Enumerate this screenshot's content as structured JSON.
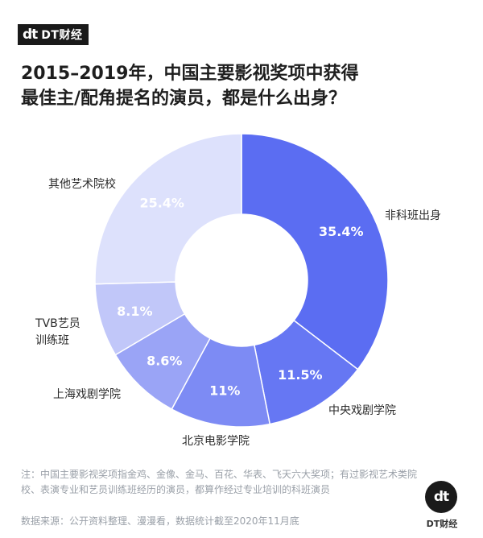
{
  "brand": {
    "logo": "dt",
    "name": "DT财经"
  },
  "title_line1": "2015–2019年，中国主要影视奖项中获得",
  "title_line2": "最佳主/配角提名的演员，都是什么出身？",
  "note": "注：中国主要影视奖项指金鸡、金像、金马、百花、华表、飞天六大奖项；有过影视艺术类院校、表演专业和艺员训练班经历的演员，都算作经过专业培训的科班演员",
  "source": "数据来源：公开资料整理、漫漫看，数据统计截至2020年11月底",
  "colors": {
    "非科班出身": "#5b6df2",
    "中央戏剧学院": "#6677f3",
    "北京电影学院": "#7d8bf4",
    "上海戏剧学院": "#9aa4f6",
    "TVB艺员训练班": "#c1c7f9",
    "其他艺术院校": "#dde1fc"
  },
  "chart_data": {
    "type": "pie",
    "donut": true,
    "title": "2015–2019年，中国主要影视奖项中获得最佳主/配角提名的演员，都是什么出身？",
    "slices": [
      {
        "label": "非科班出身",
        "value": 35.4,
        "display": "35.4%"
      },
      {
        "label": "中央戏剧学院",
        "value": 11.5,
        "display": "11.5%"
      },
      {
        "label": "北京电影学院",
        "value": 11,
        "display": "11%"
      },
      {
        "label": "上海戏剧学院",
        "value": 8.6,
        "display": "8.6%"
      },
      {
        "label": "TVB艺员训练班",
        "value": 8.1,
        "display": "8.1%"
      },
      {
        "label": "其他艺术院校",
        "value": 25.4,
        "display": "25.4%"
      }
    ]
  }
}
